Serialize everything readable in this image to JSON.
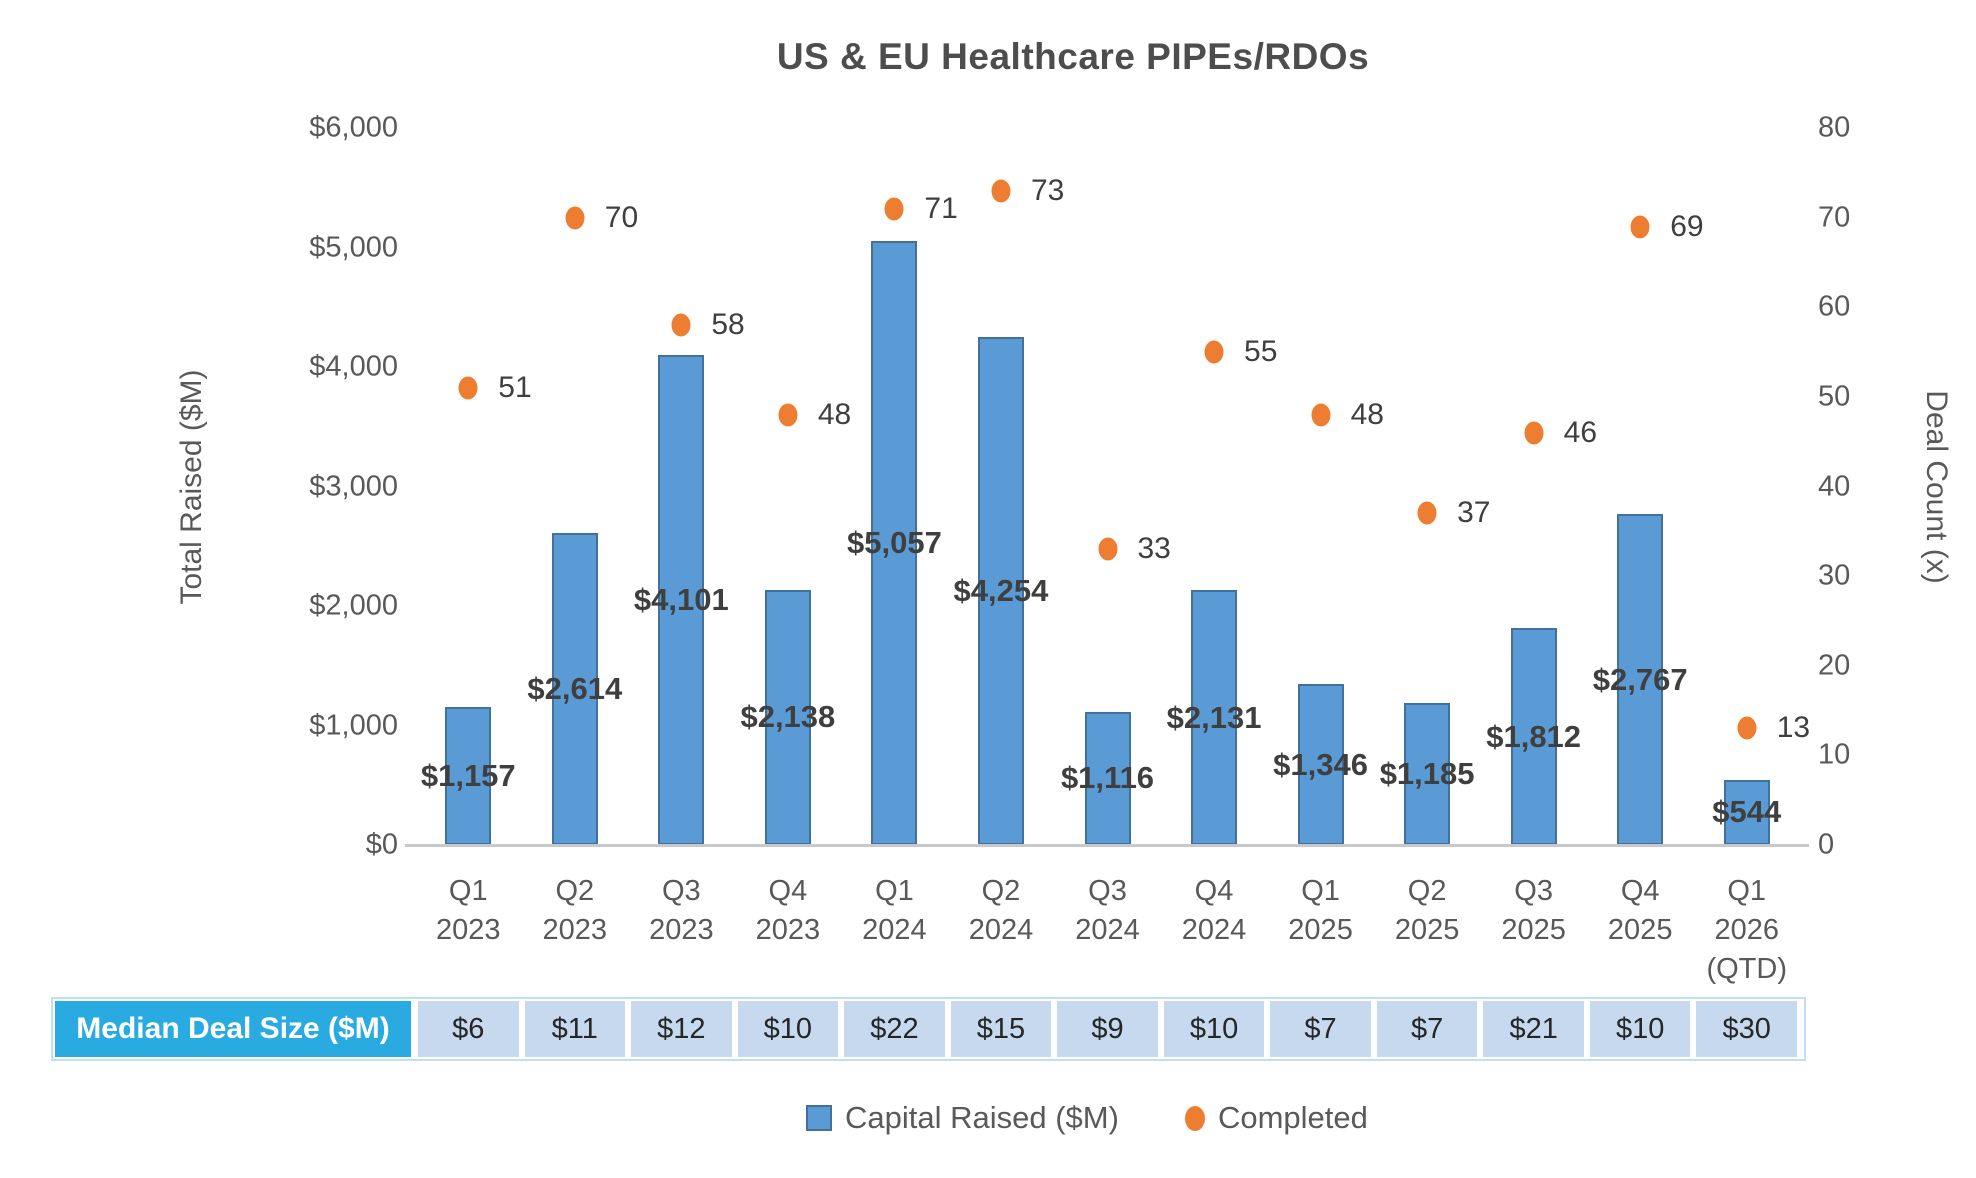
{
  "title": "US & EU Healthcare PIPEs/RDOs",
  "chart_data": {
    "type": "combo",
    "categories": [
      [
        "Q1",
        "2023"
      ],
      [
        "Q2",
        "2023"
      ],
      [
        "Q3",
        "2023"
      ],
      [
        "Q4",
        "2023"
      ],
      [
        "Q1",
        "2024"
      ],
      [
        "Q2",
        "2024"
      ],
      [
        "Q3",
        "2024"
      ],
      [
        "Q4",
        "2024"
      ],
      [
        "Q1",
        "2025"
      ],
      [
        "Q2",
        "2025"
      ],
      [
        "Q3",
        "2025"
      ],
      [
        "Q4",
        "2025"
      ],
      [
        "Q1",
        "2026",
        "(QTD)"
      ]
    ],
    "series": [
      {
        "name": "Capital Raised ($M)",
        "type": "bar",
        "axis": "left",
        "values": [
          1157,
          2614,
          4101,
          2138,
          5057,
          4254,
          1116,
          2131,
          1346,
          1185,
          1812,
          2767,
          544
        ],
        "labels": [
          "$1,157",
          "$2,614",
          "$4,101",
          "$2,138",
          "$5,057",
          "$4,254",
          "$1,116",
          "$2,131",
          "$1,346",
          "$1,185",
          "$1,812",
          "$2,767",
          "$544"
        ]
      },
      {
        "name": "Completed",
        "type": "scatter",
        "axis": "right",
        "values": [
          51,
          70,
          58,
          48,
          71,
          73,
          33,
          55,
          48,
          37,
          46,
          69,
          13
        ],
        "labels": [
          "51",
          "70",
          "58",
          "48",
          "71",
          "73",
          "33",
          "55",
          "48",
          "37",
          "46",
          "69",
          "13"
        ]
      }
    ],
    "left_axis": {
      "title": "Total Raised ($M)",
      "min": 0,
      "max": 6000,
      "tick_step": 1000,
      "tick_labels": [
        "$0",
        "$1,000",
        "$2,000",
        "$3,000",
        "$4,000",
        "$5,000",
        "$6,000"
      ]
    },
    "right_axis": {
      "title": "Deal Count (x)",
      "min": 0,
      "max": 80,
      "tick_step": 10,
      "tick_labels": [
        "0",
        "10",
        "20",
        "30",
        "40",
        "50",
        "60",
        "70",
        "80"
      ]
    },
    "grid": "off",
    "legend_position": "bottom"
  },
  "median_table": {
    "header": "Median Deal Size ($M)",
    "values": [
      "$6",
      "$11",
      "$12",
      "$10",
      "$22",
      "$15",
      "$9",
      "$10",
      "$7",
      "$7",
      "$21",
      "$10",
      "$30"
    ]
  },
  "legend": {
    "bar_label": "Capital Raised ($M)",
    "dot_label": "Completed"
  },
  "colors": {
    "bar_fill": "#5B9BD5",
    "bar_border": "#41719C",
    "dot": "#ED7D31",
    "axis_text": "#595959",
    "data_label_text": "#3F3F3F",
    "title_text": "#4D4D4D",
    "table_header_bg": "#29ABE2",
    "table_header_text": "#FFFFFF",
    "table_cell_bg": "#C6D9EE",
    "axis_line": "#C9C9C9"
  }
}
